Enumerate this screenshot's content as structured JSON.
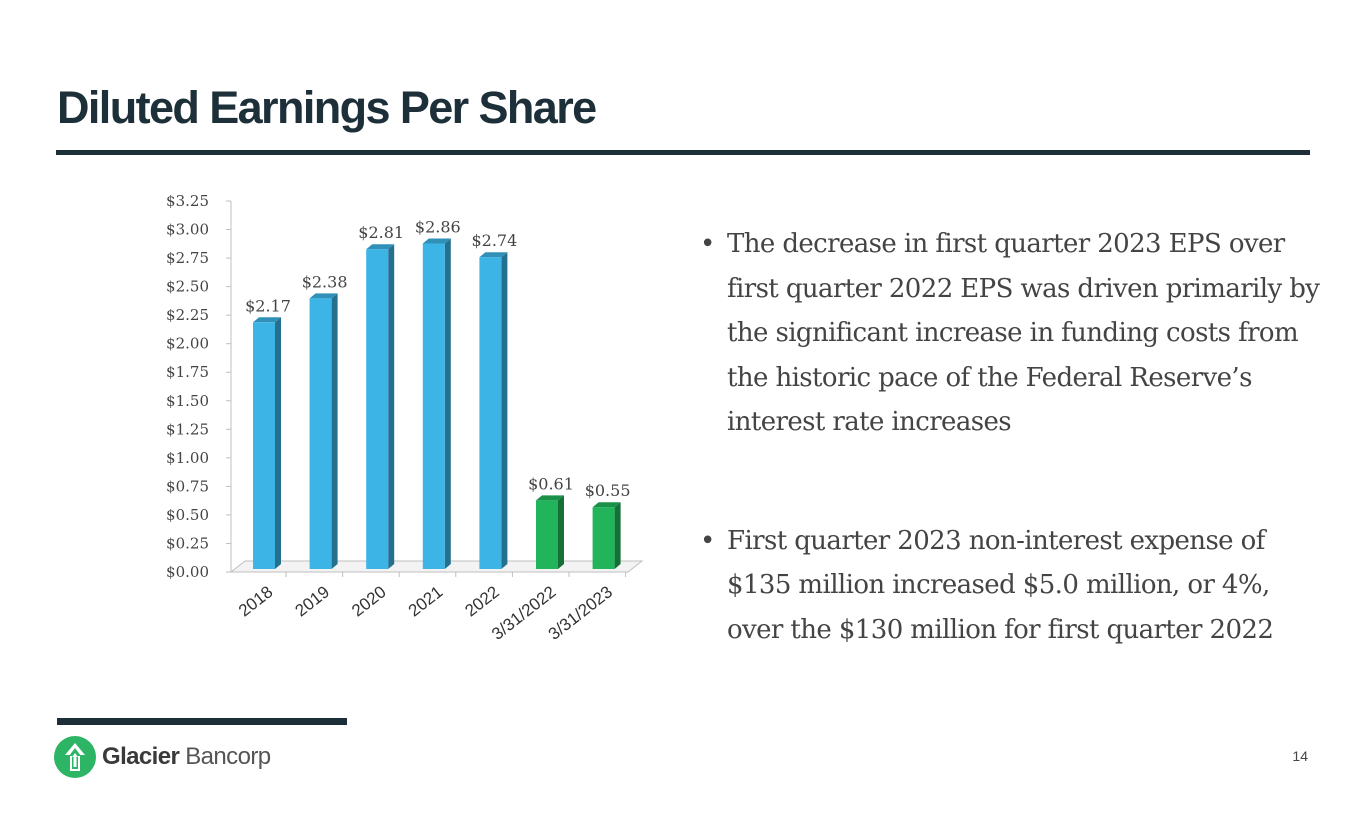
{
  "slide": {
    "title": "Diluted Earnings Per Share",
    "page_number": "14"
  },
  "bullets": [
    "The decrease in first quarter 2023 EPS over first quarter 2022 EPS was driven primarily by the significant increase in funding costs from the historic pace of the Federal Reserve’s interest rate increases",
    "First quarter 2023 non-interest expense of $135 million increased $5.0 million, or 4%, over the $130 million for first quarter 2022"
  ],
  "logo": {
    "name_bold": "Glacier",
    "name_regular": "Bancorp"
  },
  "chart_data": {
    "type": "bar",
    "title": "",
    "xlabel": "",
    "ylabel": "",
    "categories": [
      "2018",
      "2019",
      "2020",
      "2021",
      "2022",
      "3/31/2022",
      "3/31/2023"
    ],
    "values": [
      2.17,
      2.38,
      2.81,
      2.86,
      2.74,
      0.61,
      0.55
    ],
    "data_labels": [
      "$2.17",
      "$2.38",
      "$2.81",
      "$2.86",
      "$2.74",
      "$0.61",
      "$0.55"
    ],
    "bar_colors": [
      "#3cb4e6",
      "#3cb4e6",
      "#3cb4e6",
      "#3cb4e6",
      "#3cb4e6",
      "#22b45a",
      "#22b45a"
    ],
    "ylim": [
      0,
      3.25
    ],
    "yticks": [
      "$0.00",
      "$0.25",
      "$0.50",
      "$0.75",
      "$1.00",
      "$1.25",
      "$1.50",
      "$1.75",
      "$2.00",
      "$2.25",
      "$2.50",
      "$2.75",
      "$3.00",
      "$3.25"
    ],
    "grid": false,
    "legend": "none"
  },
  "colors": {
    "title": "#1d2f38",
    "blue_bar": "#3cb4e6",
    "green_bar": "#22b45a",
    "logo_green": "#2db465"
  }
}
